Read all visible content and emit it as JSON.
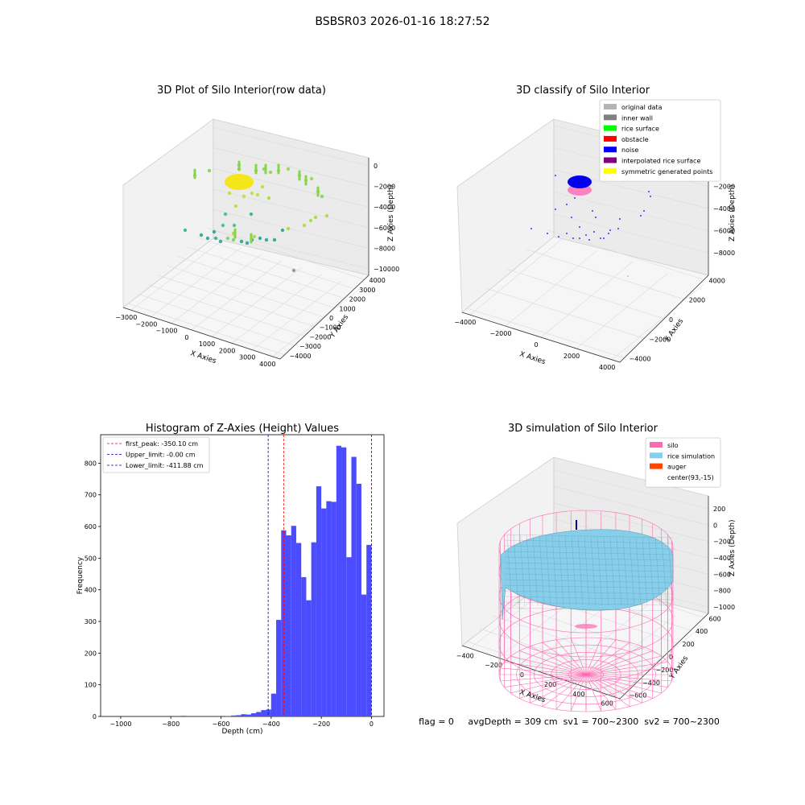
{
  "suptitle": "BSBSR03 2026-01-16 18:27:52",
  "footer": "flag = 0     avgDepth = 309 cm  sv1 = 700~2300  sv2 = 700~2300",
  "chart_data": [
    {
      "type": "scatter3d",
      "title": "3D Plot of Silo Interior(row data)",
      "xlabel": "X Axies",
      "ylabel": "Y Axies",
      "zlabel": "Z Axies (Depth)",
      "xticks": [
        "−3000",
        "−2000",
        "−1000",
        "0",
        "1000",
        "2000",
        "3000",
        "4000"
      ],
      "yticks": [
        "−4000",
        "−3000",
        "−2000",
        "−1000",
        "0",
        "1000",
        "2000",
        "3000",
        "4000"
      ],
      "zticks": [
        "0",
        "−2000",
        "−4000",
        "−6000",
        "−8000",
        "−10000"
      ],
      "colormap": "viridis"
    },
    {
      "type": "scatter3d",
      "title": "3D classify of Silo Interior",
      "xlabel": "X Axies",
      "ylabel": "Y Axies",
      "zlabel": "Z Axies (Depth)",
      "xticks": [
        "−4000",
        "−2000",
        "0",
        "2000",
        "4000"
      ],
      "yticks": [
        "−4000",
        "−2000",
        "0",
        "2000",
        "4000"
      ],
      "zticks": [
        "0",
        "−2000",
        "−4000",
        "−6000",
        "−8000"
      ],
      "legend": [
        {
          "label": "original data",
          "color": "#b4b4b4"
        },
        {
          "label": "inner wall",
          "color": "#808080"
        },
        {
          "label": "rice surface",
          "color": "#00ff00"
        },
        {
          "label": "obstacle",
          "color": "#ff0000"
        },
        {
          "label": "noise",
          "color": "#0000ff"
        },
        {
          "label": "interpolated rice surface",
          "color": "#800080"
        },
        {
          "label": "symmetric generated points",
          "color": "#ffff00"
        }
      ]
    },
    {
      "type": "bar",
      "title": "Histogram of Z-Axies (Height) Values",
      "xlabel": "Depth (cm)",
      "ylabel": "Frequency",
      "xlim": [
        -1080,
        50
      ],
      "ylim": [
        0,
        890
      ],
      "xticks": [
        {
          "v": -1000,
          "l": "−1000"
        },
        {
          "v": -800,
          "l": "−800"
        },
        {
          "v": -600,
          "l": "−600"
        },
        {
          "v": -400,
          "l": "−400"
        },
        {
          "v": -200,
          "l": "−200"
        },
        {
          "v": 0,
          "l": "0"
        }
      ],
      "yticks": [
        {
          "v": 0,
          "l": "0"
        },
        {
          "v": 100,
          "l": "100"
        },
        {
          "v": 200,
          "l": "200"
        },
        {
          "v": 300,
          "l": "300"
        },
        {
          "v": 400,
          "l": "400"
        },
        {
          "v": 500,
          "l": "500"
        },
        {
          "v": 600,
          "l": "600"
        },
        {
          "v": 700,
          "l": "700"
        },
        {
          "v": 800,
          "l": "800"
        }
      ],
      "bar_color": "#4b4bff",
      "bins": [
        {
          "x0": -760,
          "x1": -740,
          "v": 2
        },
        {
          "x0": -580,
          "x1": -560,
          "v": 1
        },
        {
          "x0": -560,
          "x1": -540,
          "v": 3
        },
        {
          "x0": -540,
          "x1": -520,
          "v": 4
        },
        {
          "x0": -520,
          "x1": -500,
          "v": 7
        },
        {
          "x0": -500,
          "x1": -480,
          "v": 6
        },
        {
          "x0": -480,
          "x1": -460,
          "v": 10
        },
        {
          "x0": -460,
          "x1": -440,
          "v": 14
        },
        {
          "x0": -440,
          "x1": -420,
          "v": 20
        },
        {
          "x0": -420,
          "x1": -400,
          "v": 22
        },
        {
          "x0": -400,
          "x1": -380,
          "v": 72
        },
        {
          "x0": -380,
          "x1": -360,
          "v": 305
        },
        {
          "x0": -360,
          "x1": -340,
          "v": 588
        },
        {
          "x0": -340,
          "x1": -320,
          "v": 572
        },
        {
          "x0": -320,
          "x1": -300,
          "v": 602
        },
        {
          "x0": -300,
          "x1": -280,
          "v": 548
        },
        {
          "x0": -280,
          "x1": -260,
          "v": 440
        },
        {
          "x0": -260,
          "x1": -240,
          "v": 367
        },
        {
          "x0": -240,
          "x1": -220,
          "v": 550
        },
        {
          "x0": -220,
          "x1": -200,
          "v": 727
        },
        {
          "x0": -200,
          "x1": -180,
          "v": 657
        },
        {
          "x0": -180,
          "x1": -160,
          "v": 680
        },
        {
          "x0": -160,
          "x1": -140,
          "v": 678
        },
        {
          "x0": -140,
          "x1": -120,
          "v": 855
        },
        {
          "x0": -120,
          "x1": -100,
          "v": 850
        },
        {
          "x0": -100,
          "x1": -80,
          "v": 503
        },
        {
          "x0": -80,
          "x1": -60,
          "v": 820
        },
        {
          "x0": -60,
          "x1": -40,
          "v": 735
        },
        {
          "x0": -40,
          "x1": -20,
          "v": 385
        },
        {
          "x0": -20,
          "x1": 0,
          "v": 542
        }
      ],
      "vlines": [
        {
          "x": -350.1,
          "color": "#ff0000",
          "label": "first_peak: -350.10 cm"
        },
        {
          "x": -0.0,
          "color": "#0000cc",
          "label": "Upper_limit: -0.00 cm"
        },
        {
          "x": -411.88,
          "color": "#0000cc",
          "label": "Lower_limit: -411.88 cm"
        }
      ]
    },
    {
      "type": "surface3d",
      "title": "3D simulation of Silo Interior",
      "xlabel": "X Axies",
      "ylabel": "Y Axies",
      "zlabel": "Z Axies (Depth)",
      "xticks": [
        "−400",
        "−200",
        "0",
        "200",
        "400",
        "600"
      ],
      "yticks": [
        "−600",
        "−400",
        "−200",
        "0",
        "200",
        "400",
        "600"
      ],
      "zticks": [
        "200",
        "0",
        "−200",
        "−400",
        "−600",
        "−800",
        "−1000"
      ],
      "legend": [
        {
          "label": "silo",
          "color": "#ff69b4"
        },
        {
          "label": "rice simulation",
          "color": "#87ceeb"
        },
        {
          "label": "auger",
          "color": "#ff4500"
        },
        {
          "label": "center(93,-15)",
          "color": "#ffffff"
        }
      ]
    }
  ]
}
